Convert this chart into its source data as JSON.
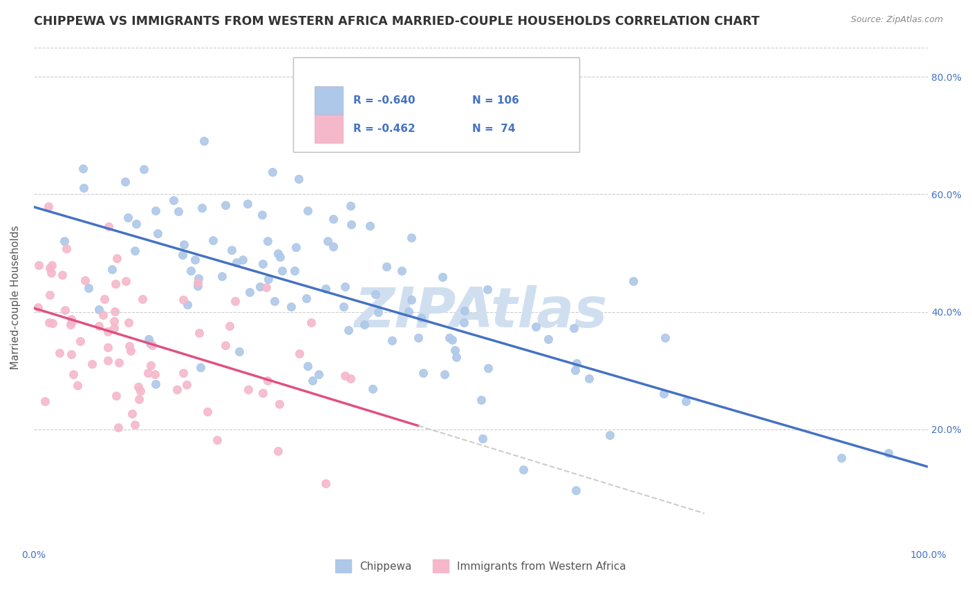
{
  "title": "CHIPPEWA VS IMMIGRANTS FROM WESTERN AFRICA MARRIED-COUPLE HOUSEHOLDS CORRELATION CHART",
  "source_text": "Source: ZipAtlas.com",
  "ylabel": "Married-couple Households",
  "legend_label1": "Chippewa",
  "legend_label2": "Immigrants from Western Africa",
  "R1": -0.64,
  "N1": 106,
  "R2": -0.462,
  "N2": 74,
  "color1": "#adc8e8",
  "color2": "#f5b8cb",
  "line_color1": "#4472c4",
  "line_color2": "#e05080",
  "line_color_dash": "#cccccc",
  "watermark": "ZIPAtlas",
  "watermark_color": "#d0dff0",
  "xlim": [
    0.0,
    1.0
  ],
  "ylim": [
    0.0,
    0.85
  ],
  "x_ticks": [
    0.0,
    0.2,
    0.4,
    0.6,
    0.8,
    1.0
  ],
  "x_tick_labels": [
    "0.0%",
    "",
    "",
    "",
    "",
    "100.0%"
  ],
  "y_ticks": [
    0.2,
    0.4,
    0.6,
    0.8
  ],
  "y_tick_labels": [
    "20.0%",
    "40.0%",
    "60.0%",
    "80.0%"
  ],
  "title_color": "#333333",
  "title_fontsize": 12.5,
  "background_color": "#ffffff",
  "grid_color": "#cccccc",
  "seed1": 42,
  "seed2": 123
}
